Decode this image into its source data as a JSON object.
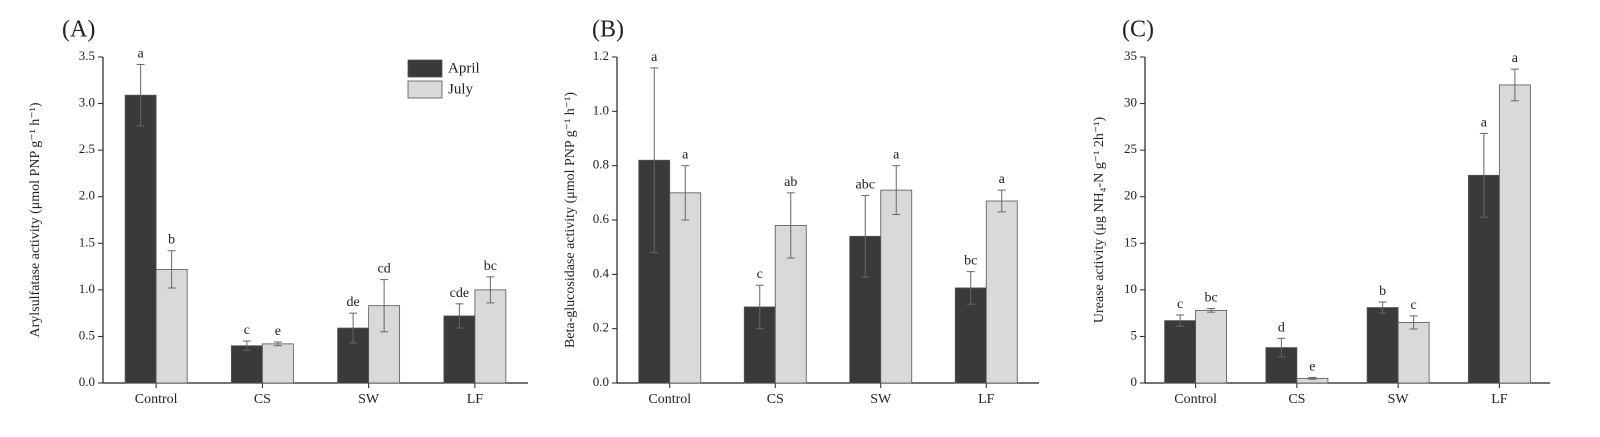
{
  "chart_data": [
    {
      "type": "bar",
      "panel_label": "(A)",
      "ylabel": "Arylsulfatase activity (μmol PNP g⁻¹ h⁻¹)",
      "ylim": [
        0,
        3.5
      ],
      "yticks": [
        "0.0",
        "0.5",
        "1.0",
        "1.5",
        "2.0",
        "2.5",
        "3.0",
        "3.5"
      ],
      "categories": [
        "Control",
        "CS",
        "SW",
        "LF"
      ],
      "legend": {
        "position": "top-right",
        "entries": [
          "April",
          "July"
        ]
      },
      "series": [
        {
          "name": "April",
          "color": "#3a3a3a",
          "values": [
            3.09,
            0.4,
            0.59,
            0.72
          ],
          "errors": [
            0.33,
            0.05,
            0.16,
            0.13
          ],
          "letters": [
            "a",
            "c",
            "de",
            "cde"
          ]
        },
        {
          "name": "July",
          "color": "#d9d9d9",
          "values": [
            1.22,
            0.42,
            0.83,
            1.0
          ],
          "errors": [
            0.2,
            0.02,
            0.28,
            0.14
          ],
          "letters": [
            "b",
            "e",
            "cd",
            "bc"
          ]
        }
      ]
    },
    {
      "type": "bar",
      "panel_label": "(B)",
      "ylabel": "Beta-glucosidase activity (μmol PNP g⁻¹ h⁻¹)",
      "ylim": [
        0,
        1.2
      ],
      "yticks": [
        "0.0",
        "0.2",
        "0.4",
        "0.6",
        "0.8",
        "1.0",
        "1.2"
      ],
      "categories": [
        "Control",
        "CS",
        "SW",
        "LF"
      ],
      "series": [
        {
          "name": "April",
          "color": "#3a3a3a",
          "values": [
            0.82,
            0.28,
            0.54,
            0.35
          ],
          "errors": [
            0.34,
            0.08,
            0.15,
            0.06
          ],
          "letters": [
            "a",
            "c",
            "abc",
            "bc"
          ]
        },
        {
          "name": "July",
          "color": "#d9d9d9",
          "values": [
            0.7,
            0.58,
            0.71,
            0.67
          ],
          "errors": [
            0.1,
            0.12,
            0.09,
            0.04
          ],
          "letters": [
            "a",
            "ab",
            "a",
            "a"
          ]
        }
      ]
    },
    {
      "type": "bar",
      "panel_label": "(C)",
      "ylabel": "Urease activity (μg NH₄-N g⁻¹ 2h⁻¹)",
      "ylim": [
        0,
        35
      ],
      "yticks": [
        "0",
        "5",
        "10",
        "15",
        "20",
        "25",
        "30",
        "35"
      ],
      "categories": [
        "Control",
        "CS",
        "SW",
        "LF"
      ],
      "series": [
        {
          "name": "April",
          "color": "#3a3a3a",
          "values": [
            6.7,
            3.8,
            8.1,
            22.3
          ],
          "errors": [
            0.6,
            1.0,
            0.6,
            4.5
          ],
          "letters": [
            "c",
            "d",
            "b",
            "a"
          ]
        },
        {
          "name": "July",
          "color": "#d9d9d9",
          "values": [
            7.8,
            0.5,
            6.5,
            32.0
          ],
          "errors": [
            0.2,
            0.1,
            0.7,
            1.7
          ],
          "letters": [
            "bc",
            "e",
            "c",
            "a"
          ]
        }
      ]
    }
  ]
}
